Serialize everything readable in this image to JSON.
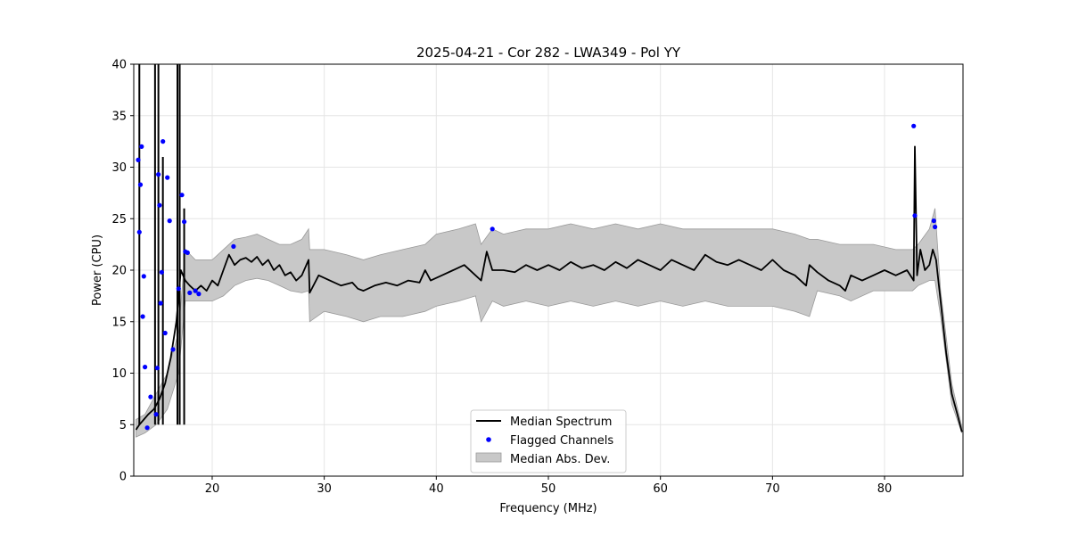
{
  "chart_data": {
    "type": "line",
    "title": "2025-04-21 - Cor 282 - LWA349 - Pol YY",
    "xlabel": "Frequency (MHz)",
    "ylabel": "Power (CPU)",
    "xlim": [
      13,
      87
    ],
    "ylim": [
      0,
      40
    ],
    "xticks": [
      20,
      30,
      40,
      50,
      60,
      70,
      80
    ],
    "yticks": [
      0,
      5,
      10,
      15,
      20,
      25,
      30,
      35,
      40
    ],
    "grid": true,
    "legend_position": "lower-center",
    "colors": {
      "median": "#000000",
      "flagged": "#0000ff",
      "band_fill": "#c8c8c8",
      "band_edge": "#9a9a9a",
      "grid": "#e5e5e5"
    },
    "series": [
      {
        "name": "Median Spectrum",
        "kind": "line",
        "x": [
          13.2,
          13.5,
          13.9,
          14.3,
          14.8,
          15.3,
          15.8,
          16.3,
          16.8,
          17.2,
          17.6,
          18.0,
          18.5,
          19.0,
          19.5,
          20.0,
          20.5,
          21.0,
          21.5,
          22.0,
          22.5,
          23.0,
          23.5,
          24.0,
          24.5,
          25.0,
          25.5,
          26.0,
          26.5,
          27.0,
          27.5,
          28.0,
          28.6,
          28.7,
          29.5,
          30.5,
          31.5,
          32.5,
          33.0,
          33.5,
          34.5,
          35.5,
          36.5,
          37.5,
          38.5,
          39.0,
          39.5,
          40.5,
          41.5,
          42.5,
          43.5,
          44.0,
          44.5,
          45.0,
          46.0,
          47.0,
          48.0,
          49.0,
          50.0,
          51.0,
          52.0,
          53.0,
          54.0,
          55.0,
          56.0,
          57.0,
          58.0,
          59.0,
          60.0,
          61.0,
          62.0,
          63.0,
          64.0,
          65.0,
          66.0,
          67.0,
          68.0,
          69.0,
          70.0,
          71.0,
          72.0,
          73.0,
          73.3,
          74.0,
          75.0,
          76.0,
          76.5,
          77.0,
          78.0,
          79.0,
          80.0,
          81.0,
          82.0,
          82.6,
          82.7,
          82.9,
          83.2,
          83.6,
          84.0,
          84.3,
          84.6,
          85.0,
          85.5,
          86.0,
          86.5,
          86.9
        ],
        "y": [
          4.5,
          5.0,
          5.5,
          6.0,
          6.5,
          7.5,
          9.0,
          11.5,
          15.0,
          20.0,
          19.0,
          18.5,
          18.0,
          18.5,
          18.0,
          19.0,
          18.5,
          20.0,
          21.5,
          20.5,
          21.0,
          21.2,
          20.8,
          21.3,
          20.5,
          21.0,
          20.0,
          20.5,
          19.5,
          19.8,
          19.0,
          19.5,
          21.0,
          17.8,
          19.5,
          19.0,
          18.5,
          18.8,
          18.2,
          18.0,
          18.5,
          18.8,
          18.5,
          19.0,
          18.8,
          20.0,
          19.0,
          19.5,
          20.0,
          20.5,
          19.5,
          19.0,
          21.8,
          20.0,
          20.0,
          19.8,
          20.5,
          20.0,
          20.5,
          20.0,
          20.8,
          20.2,
          20.5,
          20.0,
          20.8,
          20.2,
          21.0,
          20.5,
          20.0,
          21.0,
          20.5,
          20.0,
          21.5,
          20.8,
          20.5,
          21.0,
          20.5,
          20.0,
          21.0,
          20.0,
          19.5,
          18.5,
          20.5,
          19.8,
          19.0,
          18.5,
          18.0,
          19.5,
          19.0,
          19.5,
          20.0,
          19.5,
          20.0,
          19.0,
          32.0,
          19.5,
          22.0,
          20.0,
          20.5,
          22.0,
          21.0,
          17.0,
          12.0,
          8.0,
          6.0,
          4.3
        ]
      },
      {
        "name": "Flagged Channels",
        "kind": "scatter",
        "x": [
          13.4,
          13.5,
          13.6,
          13.7,
          13.8,
          13.9,
          14.0,
          14.2,
          14.5,
          15.0,
          15.1,
          15.2,
          15.3,
          15.4,
          15.5,
          15.6,
          15.8,
          16.0,
          16.2,
          16.5,
          17.0,
          17.3,
          17.5,
          17.6,
          17.8,
          18.0,
          18.5,
          18.8,
          21.9,
          45.0,
          82.6,
          82.7,
          84.4,
          84.5
        ],
        "y": [
          30.7,
          23.7,
          28.3,
          32.0,
          15.5,
          19.4,
          10.6,
          4.7,
          7.7,
          6.0,
          10.5,
          29.3,
          26.3,
          16.8,
          19.8,
          32.5,
          13.9,
          29.0,
          24.8,
          12.3,
          18.2,
          27.3,
          24.7,
          21.8,
          21.7,
          17.8,
          18.0,
          17.7,
          22.3,
          24.0,
          34.0,
          25.3,
          24.8,
          24.2
        ]
      },
      {
        "name": "Median Abs. Dev.",
        "kind": "band",
        "x": [
          13.2,
          14.0,
          15.0,
          16.0,
          17.0,
          17.6,
          18.5,
          20.0,
          21.0,
          22.0,
          23.0,
          24.0,
          25.0,
          26.0,
          27.0,
          28.0,
          28.6,
          28.7,
          30.0,
          32.0,
          33.5,
          35.0,
          37.0,
          39.0,
          40.0,
          42.0,
          43.5,
          44.0,
          45.0,
          46.0,
          48.0,
          50.0,
          52.0,
          54.0,
          56.0,
          58.0,
          60.0,
          62.0,
          64.0,
          66.0,
          68.0,
          70.0,
          72.0,
          73.3,
          74.0,
          76.0,
          77.0,
          79.0,
          81.0,
          82.5,
          83.0,
          84.0,
          84.5,
          85.0,
          86.0,
          86.9
        ],
        "lower": [
          3.8,
          4.2,
          5.0,
          6.5,
          10.0,
          17.0,
          17.0,
          17.0,
          17.5,
          18.5,
          19.0,
          19.2,
          19.0,
          18.5,
          18.0,
          17.8,
          18.0,
          15.0,
          16.0,
          15.5,
          15.0,
          15.5,
          15.5,
          16.0,
          16.5,
          17.0,
          17.5,
          15.0,
          17.0,
          16.5,
          17.0,
          16.5,
          17.0,
          16.5,
          17.0,
          16.5,
          17.0,
          16.5,
          17.0,
          16.5,
          16.5,
          16.5,
          16.0,
          15.5,
          18.0,
          17.5,
          17.0,
          18.0,
          18.0,
          18.0,
          18.5,
          19.0,
          19.0,
          15.5,
          7.0,
          4.2
        ],
        "upper": [
          5.5,
          6.0,
          8.0,
          10.0,
          14.0,
          22.0,
          21.0,
          21.0,
          22.0,
          23.0,
          23.2,
          23.5,
          23.0,
          22.5,
          22.5,
          23.0,
          24.0,
          22.0,
          22.0,
          21.5,
          21.0,
          21.5,
          22.0,
          22.5,
          23.5,
          24.0,
          24.5,
          22.5,
          24.0,
          23.5,
          24.0,
          24.0,
          24.5,
          24.0,
          24.5,
          24.0,
          24.5,
          24.0,
          24.0,
          24.0,
          24.0,
          24.0,
          23.5,
          23.0,
          23.0,
          22.5,
          22.5,
          22.5,
          22.0,
          22.0,
          22.5,
          24.0,
          26.0,
          18.0,
          9.0,
          4.8
        ]
      }
    ],
    "rfi_spikes": [
      {
        "x": 13.5,
        "y": 40
      },
      {
        "x": 14.9,
        "y": 40
      },
      {
        "x": 15.2,
        "y": 40
      },
      {
        "x": 15.6,
        "y": 31
      },
      {
        "x": 16.9,
        "y": 40
      },
      {
        "x": 17.1,
        "y": 40
      },
      {
        "x": 17.5,
        "y": 26
      }
    ]
  }
}
